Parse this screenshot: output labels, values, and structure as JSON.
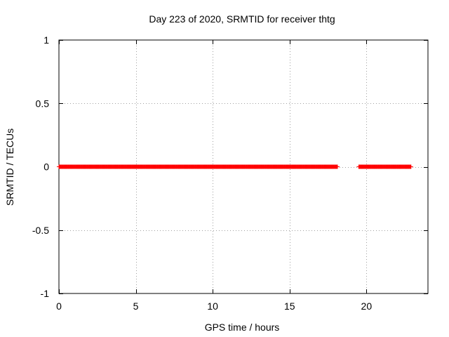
{
  "chart_data": {
    "type": "scatter",
    "title": "Day 223 of 2020, SRMTID for receiver thtg",
    "xlabel": "GPS time / hours",
    "ylabel": "SRMTID / TECUs",
    "xlim": [
      0,
      24
    ],
    "ylim": [
      -1,
      1
    ],
    "xticks": [
      0,
      5,
      10,
      15,
      20
    ],
    "yticks": [
      -1,
      -0.5,
      0,
      0.5,
      1
    ],
    "xtick_labels": [
      "0",
      "5",
      "10",
      "15",
      "20"
    ],
    "ytick_labels": [
      "-1",
      "-0.5",
      "0",
      "0.5",
      "1"
    ],
    "grid": true,
    "marker": "plus",
    "series": [
      {
        "name": "SRMTID",
        "color": "#ff0000",
        "segments": [
          {
            "x_start": 0.0,
            "x_end": 18.1,
            "step_hours": 0.0333,
            "y": 0
          },
          {
            "x_start": 19.5,
            "x_end": 22.9,
            "step_hours": 0.0333,
            "y": 0
          }
        ]
      }
    ]
  }
}
